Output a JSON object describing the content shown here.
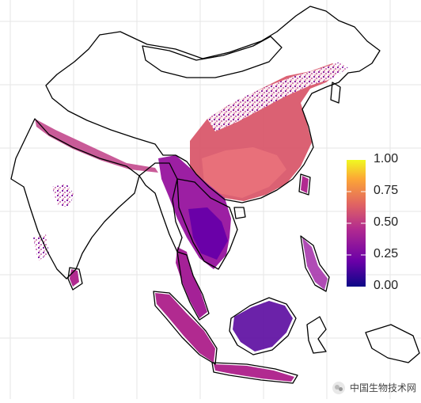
{
  "legend": {
    "ticks": [
      "1.00",
      "0.75",
      "0.50",
      "0.25",
      "0.00"
    ],
    "gradient": [
      "#0d0887",
      "#6a00a8",
      "#b12a90",
      "#e16462",
      "#fca636",
      "#f0f921"
    ]
  },
  "watermark": {
    "text": "中国生物技术网",
    "logo_icon": "wechat-logo"
  },
  "colors": {
    "background": "#ffffff",
    "grid": "#e6e6e6",
    "border": "#000000"
  }
}
